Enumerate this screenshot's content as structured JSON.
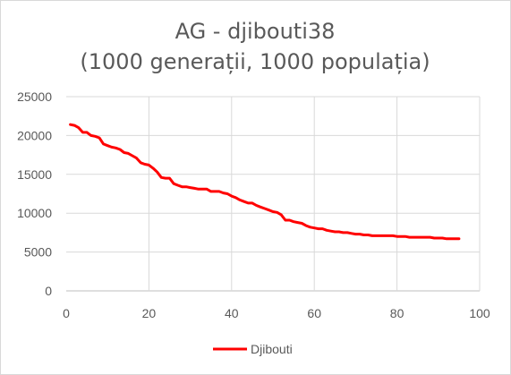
{
  "chart_data": {
    "type": "line",
    "title": "AG - djibouti38",
    "subtitle": "(1000 generații, 1000 populația)",
    "xlabel": "",
    "ylabel": "",
    "xlim": [
      0,
      100
    ],
    "ylim": [
      0,
      25000
    ],
    "x_ticks": [
      0,
      20,
      40,
      60,
      80,
      100
    ],
    "y_ticks": [
      0,
      5000,
      10000,
      15000,
      20000,
      25000
    ],
    "grid": true,
    "legend_position": "bottom",
    "series": [
      {
        "name": "Djibouti",
        "color": "#ff0000",
        "x": [
          1,
          2,
          3,
          4,
          5,
          6,
          7,
          8,
          9,
          10,
          11,
          12,
          13,
          14,
          15,
          16,
          17,
          18,
          19,
          20,
          21,
          22,
          23,
          24,
          25,
          26,
          27,
          28,
          29,
          30,
          31,
          32,
          33,
          34,
          35,
          36,
          37,
          38,
          39,
          40,
          41,
          42,
          43,
          44,
          45,
          46,
          47,
          48,
          49,
          50,
          51,
          52,
          53,
          54,
          55,
          56,
          57,
          58,
          59,
          60,
          61,
          62,
          63,
          64,
          65,
          66,
          67,
          68,
          69,
          70,
          71,
          72,
          73,
          74,
          75,
          76,
          77,
          78,
          79,
          80,
          81,
          82,
          83,
          84,
          85,
          86,
          87,
          88,
          89,
          90,
          91,
          92,
          93,
          94,
          95
        ],
        "values": [
          21400,
          21300,
          21000,
          20400,
          20400,
          20000,
          19900,
          19700,
          18900,
          18700,
          18500,
          18400,
          18200,
          17800,
          17700,
          17400,
          17100,
          16500,
          16300,
          16200,
          15800,
          15300,
          14600,
          14500,
          14500,
          13800,
          13600,
          13400,
          13400,
          13300,
          13200,
          13100,
          13100,
          13100,
          12800,
          12800,
          12800,
          12600,
          12500,
          12200,
          12000,
          11700,
          11500,
          11300,
          11300,
          11000,
          10800,
          10600,
          10400,
          10200,
          10100,
          9800,
          9100,
          9100,
          8900,
          8800,
          8700,
          8400,
          8200,
          8100,
          8000,
          8000,
          7800,
          7700,
          7600,
          7600,
          7500,
          7500,
          7400,
          7300,
          7300,
          7200,
          7200,
          7100,
          7100,
          7100,
          7100,
          7100,
          7100,
          7000,
          7000,
          7000,
          6900,
          6900,
          6900,
          6900,
          6900,
          6900,
          6800,
          6800,
          6800,
          6700,
          6700,
          6700,
          6700
        ]
      }
    ]
  }
}
